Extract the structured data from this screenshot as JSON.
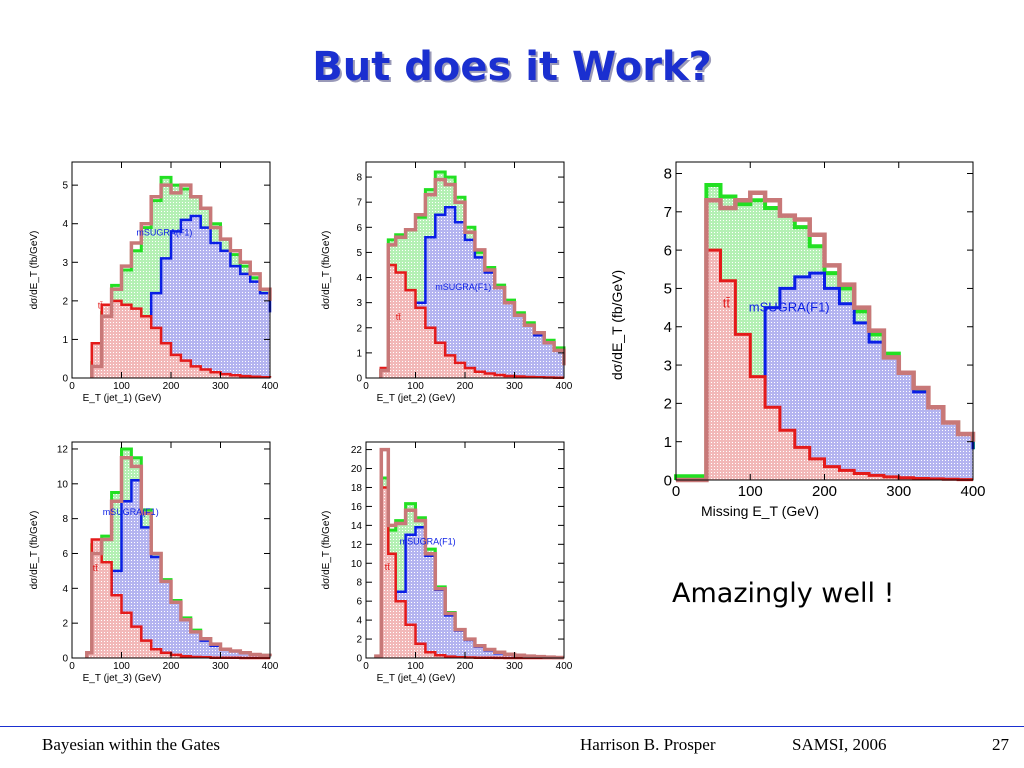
{
  "slide": {
    "title": "But does it Work?",
    "comment": "Amazingly well !",
    "footer": {
      "left": "Bayesian within the Gates",
      "author": "Harrison B. Prosper",
      "venue": "SAMSI, 2006",
      "page": "27"
    }
  },
  "colors": {
    "title": "#1a2fd0",
    "total": "#22e022",
    "data": "#c87878",
    "signal": "#0a1ee6",
    "ttbar": "#e41a1a",
    "signal_fill": "#b4b4f0",
    "ttbar_fill": "#f2b8b8",
    "total_fill": "#b4f0b4"
  },
  "chart_data": [
    {
      "type": "area",
      "xlabel": "E_T (jet_1)  (GeV)",
      "ylabel": "dσ/dE_T (fb/GeV)",
      "xlim": [
        0,
        400
      ],
      "ylim": [
        0,
        5.6
      ],
      "xticks": [
        0,
        100,
        200,
        300,
        400
      ],
      "yticks": [
        0,
        1,
        2,
        3,
        4,
        5
      ],
      "labels": {
        "signal": "mSUGRA(F1)",
        "ttbar": "tt̄"
      },
      "x": [
        40,
        60,
        80,
        100,
        120,
        140,
        160,
        180,
        200,
        220,
        240,
        260,
        280,
        300,
        320,
        340,
        360,
        380,
        400
      ],
      "series": [
        {
          "name": "total",
          "values": [
            0.4,
            1.7,
            2.4,
            2.8,
            3.3,
            3.9,
            4.6,
            5.2,
            5.0,
            4.9,
            4.7,
            4.4,
            4.0,
            3.6,
            3.2,
            2.9,
            2.6,
            2.3,
            2.1
          ]
        },
        {
          "name": "data",
          "values": [
            0.3,
            1.6,
            2.3,
            2.9,
            3.5,
            4.0,
            4.7,
            5.0,
            4.8,
            5.0,
            4.7,
            4.4,
            3.9,
            3.6,
            3.3,
            3.0,
            2.7,
            2.3,
            2.0
          ]
        },
        {
          "name": "signal",
          "values": [
            0.1,
            0.2,
            0.3,
            0.5,
            0.9,
            1.4,
            2.2,
            3.1,
            3.8,
            4.1,
            4.2,
            3.9,
            3.5,
            3.3,
            2.9,
            2.7,
            2.5,
            2.2,
            1.7
          ]
        },
        {
          "name": "ttbar",
          "values": [
            0.9,
            1.9,
            2.0,
            1.9,
            1.8,
            1.6,
            1.3,
            0.9,
            0.6,
            0.45,
            0.3,
            0.22,
            0.15,
            0.1,
            0.07,
            0.05,
            0.03,
            0.02,
            0.01
          ]
        }
      ]
    },
    {
      "type": "area",
      "xlabel": "E_T (jet_2)  (GeV)",
      "ylabel": "dσ/dE_T (fb/GeV)",
      "xlim": [
        0,
        400
      ],
      "ylim": [
        0,
        8.6
      ],
      "xticks": [
        0,
        100,
        200,
        300,
        400
      ],
      "yticks": [
        0,
        1,
        2,
        3,
        4,
        5,
        6,
        7,
        8
      ],
      "labels": {
        "signal": "mSUGRA(F1)",
        "ttbar": "tt̄"
      },
      "x": [
        30,
        45,
        60,
        80,
        100,
        120,
        140,
        160,
        180,
        200,
        220,
        240,
        260,
        280,
        300,
        320,
        340,
        360,
        380,
        400
      ],
      "series": [
        {
          "name": "total",
          "values": [
            0.3,
            5.5,
            5.7,
            5.9,
            6.4,
            7.5,
            8.2,
            8.0,
            7.2,
            6.0,
            5.0,
            4.4,
            3.7,
            3.1,
            2.6,
            2.2,
            1.8,
            1.5,
            1.2,
            0.6
          ]
        },
        {
          "name": "data",
          "values": [
            0.3,
            5.3,
            5.6,
            5.9,
            6.5,
            7.3,
            7.9,
            7.7,
            7.0,
            5.8,
            5.1,
            4.3,
            3.6,
            3.0,
            2.5,
            2.1,
            1.8,
            1.4,
            1.1,
            0.5
          ]
        },
        {
          "name": "signal",
          "values": [
            0.1,
            0.8,
            1.2,
            1.6,
            3.0,
            5.6,
            6.5,
            6.8,
            6.2,
            5.5,
            4.8,
            4.2,
            3.6,
            3.0,
            2.5,
            2.1,
            1.7,
            1.4,
            1.1,
            0.6
          ]
        },
        {
          "name": "ttbar",
          "values": [
            0.4,
            4.5,
            4.2,
            3.5,
            2.8,
            2.0,
            1.4,
            0.9,
            0.6,
            0.4,
            0.25,
            0.18,
            0.12,
            0.08,
            0.06,
            0.04,
            0.03,
            0.02,
            0.01,
            0.01
          ]
        }
      ]
    },
    {
      "type": "area",
      "xlabel": "Missing E_T  (GeV)",
      "ylabel": "dσ/dE_T (fb/GeV)",
      "xlim": [
        0,
        400
      ],
      "ylim": [
        0,
        8.3
      ],
      "xticks": [
        0,
        100,
        200,
        300,
        400
      ],
      "yticks": [
        0,
        1,
        2,
        3,
        4,
        5,
        6,
        7,
        8
      ],
      "labels": {
        "signal": "mSUGRA(F1)",
        "ttbar": "tt̄"
      },
      "x": [
        0,
        40,
        41,
        60,
        80,
        100,
        120,
        140,
        160,
        180,
        200,
        220,
        240,
        260,
        280,
        300,
        320,
        340,
        360,
        380,
        400
      ],
      "series": [
        {
          "name": "total",
          "values": [
            0.1,
            0.1,
            7.7,
            7.4,
            7.2,
            7.3,
            7.1,
            6.9,
            6.6,
            6.1,
            5.4,
            5.0,
            4.4,
            3.8,
            3.3,
            2.8,
            2.3,
            1.9,
            1.5,
            1.2,
            0.8
          ]
        },
        {
          "name": "data",
          "values": [
            0.0,
            0.0,
            7.3,
            7.1,
            7.3,
            7.5,
            7.3,
            6.9,
            6.8,
            6.4,
            5.6,
            5.1,
            4.5,
            3.9,
            3.2,
            2.8,
            2.4,
            1.9,
            1.5,
            1.2,
            1.0
          ]
        },
        {
          "name": "signal",
          "values": [
            0.0,
            0.0,
            0.8,
            1.4,
            1.9,
            2.5,
            4.5,
            5.0,
            5.3,
            5.4,
            5.0,
            4.6,
            4.1,
            3.6,
            3.2,
            2.8,
            2.3,
            1.9,
            1.5,
            1.2,
            0.8
          ]
        },
        {
          "name": "ttbar",
          "values": [
            0.0,
            0.0,
            6.0,
            5.2,
            3.8,
            2.7,
            1.9,
            1.3,
            0.85,
            0.55,
            0.35,
            0.25,
            0.17,
            0.12,
            0.08,
            0.06,
            0.04,
            0.03,
            0.02,
            0.01,
            0.01
          ]
        }
      ]
    },
    {
      "type": "area",
      "xlabel": "E_T (jet_3)  (GeV)",
      "ylabel": "dσ/dE_T (fb/GeV)",
      "xlim": [
        0,
        400
      ],
      "ylim": [
        0,
        12.4
      ],
      "xticks": [
        0,
        100,
        200,
        300,
        400
      ],
      "yticks": [
        0,
        2,
        4,
        6,
        8,
        10,
        12
      ],
      "labels": {
        "signal": "mSUGRA(F1)",
        "ttbar": "tt̄"
      },
      "x": [
        30,
        40,
        60,
        80,
        100,
        120,
        140,
        160,
        180,
        200,
        220,
        240,
        260,
        280,
        300,
        320,
        340,
        360,
        380,
        400
      ],
      "series": [
        {
          "name": "total",
          "values": [
            0.3,
            6.5,
            7.0,
            9.5,
            12.0,
            11.5,
            8.5,
            6.0,
            4.5,
            3.3,
            2.3,
            1.6,
            1.1,
            0.8,
            0.5,
            0.4,
            0.3,
            0.2,
            0.15,
            0.1
          ]
        },
        {
          "name": "data",
          "values": [
            0.3,
            6.0,
            6.8,
            9.0,
            11.5,
            11.0,
            8.3,
            6.0,
            4.4,
            3.2,
            2.2,
            1.5,
            1.1,
            0.8,
            0.5,
            0.4,
            0.3,
            0.2,
            0.15,
            0.1
          ]
        },
        {
          "name": "signal",
          "values": [
            0.1,
            0.5,
            1.2,
            5.0,
            9.0,
            10.2,
            7.5,
            5.8,
            4.4,
            3.2,
            2.2,
            1.5,
            1.0,
            0.7,
            0.5,
            0.4,
            0.3,
            0.2,
            0.15,
            0.1
          ]
        },
        {
          "name": "ttbar",
          "values": [
            0.3,
            6.8,
            5.5,
            3.6,
            2.6,
            1.8,
            1.0,
            0.5,
            0.3,
            0.18,
            0.1,
            0.06,
            0.04,
            0.02,
            0.01,
            0.01,
            0.0,
            0.0,
            0.0,
            0.0
          ]
        }
      ]
    },
    {
      "type": "area",
      "xlabel": "E_T (jet_4)  (GeV)",
      "ylabel": "dσ/dE_T (fb/GeV)",
      "xlim": [
        0,
        400
      ],
      "ylim": [
        0,
        22.8
      ],
      "xticks": [
        0,
        100,
        200,
        300,
        400
      ],
      "yticks": [
        0,
        2,
        4,
        6,
        8,
        10,
        12,
        14,
        16,
        18,
        20,
        22
      ],
      "labels": {
        "signal": "mSUGRA(F1)",
        "ttbar": "tt̄"
      },
      "x": [
        20,
        30,
        31,
        45,
        60,
        80,
        100,
        120,
        140,
        160,
        180,
        200,
        220,
        240,
        260,
        280,
        300,
        320,
        340,
        360,
        380,
        400
      ],
      "series": [
        {
          "name": "total",
          "values": [
            0.2,
            0.2,
            19.0,
            13.5,
            14.5,
            16.3,
            14.8,
            11.5,
            7.5,
            4.8,
            3.0,
            2.0,
            1.3,
            0.9,
            0.6,
            0.4,
            0.3,
            0.2,
            0.15,
            0.1,
            0.05,
            0.05
          ]
        },
        {
          "name": "data",
          "values": [
            0.2,
            0.2,
            22.0,
            14.0,
            14.2,
            15.6,
            14.5,
            11.0,
            7.3,
            4.7,
            3.0,
            2.0,
            1.3,
            0.9,
            0.6,
            0.4,
            0.3,
            0.2,
            0.15,
            0.1,
            0.05,
            0.05
          ]
        },
        {
          "name": "signal",
          "values": [
            0.1,
            0.1,
            0.5,
            1.5,
            7.0,
            13.0,
            13.8,
            10.8,
            7.2,
            4.5,
            2.9,
            1.9,
            1.2,
            0.8,
            0.5,
            0.35,
            0.25,
            0.18,
            0.12,
            0.08,
            0.05,
            0.05
          ]
        },
        {
          "name": "ttbar",
          "values": [
            0.2,
            0.2,
            18.0,
            11.0,
            6.0,
            3.5,
            1.5,
            0.6,
            0.3,
            0.15,
            0.08,
            0.05,
            0.03,
            0.02,
            0.01,
            0.0,
            0.0,
            0.0,
            0.0,
            0.0,
            0.0,
            0.0
          ]
        }
      ]
    }
  ]
}
